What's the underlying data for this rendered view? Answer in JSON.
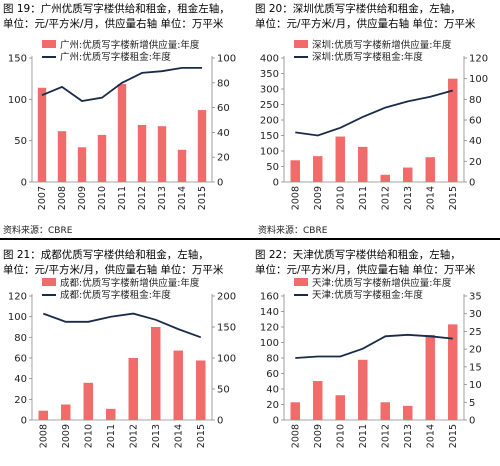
{
  "chart_data": [
    {
      "type": "bar",
      "caption_a": "图 19：广州优质写字楼供给和租金，租金左轴，",
      "caption_b": "单位：元/平方米/月，供应量右轴 单位：万平米",
      "legend_bar": "广州:优质写字楼新增供应量:年度",
      "legend_line": "广州:优质写字楼租金:年度",
      "categories": [
        "2007",
        "2008",
        "2009",
        "2010",
        "2011",
        "2012",
        "2013",
        "2014",
        "2015"
      ],
      "supply": [
        76,
        41,
        28,
        38,
        79,
        46,
        45,
        26,
        58
      ],
      "rent": [
        105,
        115,
        98,
        102,
        120,
        132,
        134,
        138,
        138
      ],
      "left_axis": {
        "min": 0,
        "max": 150,
        "ticks": [
          0,
          50,
          100,
          150
        ]
      },
      "right_axis": {
        "min": 0,
        "max": 100,
        "ticks": [
          0,
          20,
          40,
          60,
          80,
          100
        ]
      },
      "bar_color": "#f26b6b",
      "line_color": "#1a2b4a",
      "source": "资料来源：CBRE"
    },
    {
      "type": "bar",
      "caption_a": "图 20：深圳优质写字楼供给和租金，左轴，",
      "caption_b": "单位：元/平方米/月，供应量右轴 单位：万平米",
      "legend_bar": "深圳:优质写字楼新增供应量:年度",
      "legend_line": "深圳:优质写字楼租金:年度",
      "categories": [
        "2008",
        "2009",
        "2010",
        "2011",
        "2012",
        "2013",
        "2014",
        "2015"
      ],
      "supply": [
        21,
        25,
        44,
        34,
        7,
        14,
        24,
        100
      ],
      "rent": [
        160,
        150,
        175,
        210,
        240,
        260,
        275,
        295
      ],
      "left_axis": {
        "min": 0,
        "max": 400,
        "ticks": [
          0,
          50,
          100,
          150,
          200,
          250,
          300,
          350,
          400
        ]
      },
      "right_axis": {
        "min": 0,
        "max": 120,
        "ticks": [
          0,
          20,
          40,
          60,
          80,
          100,
          120
        ]
      },
      "bar_color": "#f26b6b",
      "line_color": "#1a2b4a",
      "source": "资料来源：CBRE"
    },
    {
      "type": "bar",
      "caption_a": "图 21：成都优质写字楼供给和租金，左轴，",
      "caption_b": "单位：元/平方米/月，供应量右轴 单位：万平米",
      "legend_bar": "成都:优质写字楼新增供应量:年度",
      "legend_line": "成都:优质写字楼租金:年度",
      "categories": [
        "2008",
        "2009",
        "2010",
        "2011",
        "2012",
        "2013",
        "2014",
        "2015"
      ],
      "supply": [
        15,
        25,
        60,
        18,
        100,
        150,
        112,
        96
      ],
      "rent": [
        103,
        95,
        95,
        100,
        103,
        97,
        88,
        80
      ],
      "left_axis": {
        "min": 0,
        "max": 120,
        "ticks": [
          0,
          20,
          40,
          60,
          80,
          100,
          120
        ]
      },
      "right_axis": {
        "min": 0,
        "max": 200,
        "ticks": [
          0,
          50,
          100,
          150,
          200
        ]
      },
      "bar_color": "#f26b6b",
      "line_color": "#1a2b4a",
      "source": ""
    },
    {
      "type": "bar",
      "caption_a": "图 22：天津优质写字楼供给和租金，左轴，",
      "caption_b": "单位：元/平方米/月，供应量右轴 单位：万平米",
      "legend_bar": "天津:优质写字楼新增供应量:年度",
      "legend_line": "天津:优质写字楼租金:年度",
      "categories": [
        "2008",
        "2009",
        "2010",
        "2011",
        "2012",
        "2013",
        "2014",
        "2015"
      ],
      "supply": [
        5,
        11,
        7,
        17,
        5,
        4,
        24,
        27
      ],
      "rent": [
        80,
        82,
        82,
        92,
        108,
        110,
        108,
        105
      ],
      "left_axis": {
        "min": 0,
        "max": 160,
        "ticks": [
          0,
          20,
          40,
          60,
          80,
          100,
          120,
          140,
          160
        ]
      },
      "right_axis": {
        "min": 0,
        "max": 35,
        "ticks": [
          0,
          5,
          10,
          15,
          20,
          25,
          30,
          35
        ]
      },
      "bar_color": "#f26b6b",
      "line_color": "#1a2b4a",
      "source": ""
    }
  ],
  "sources": {
    "left": "资料来源：CBRE",
    "right": "资料来源：CBRE"
  }
}
